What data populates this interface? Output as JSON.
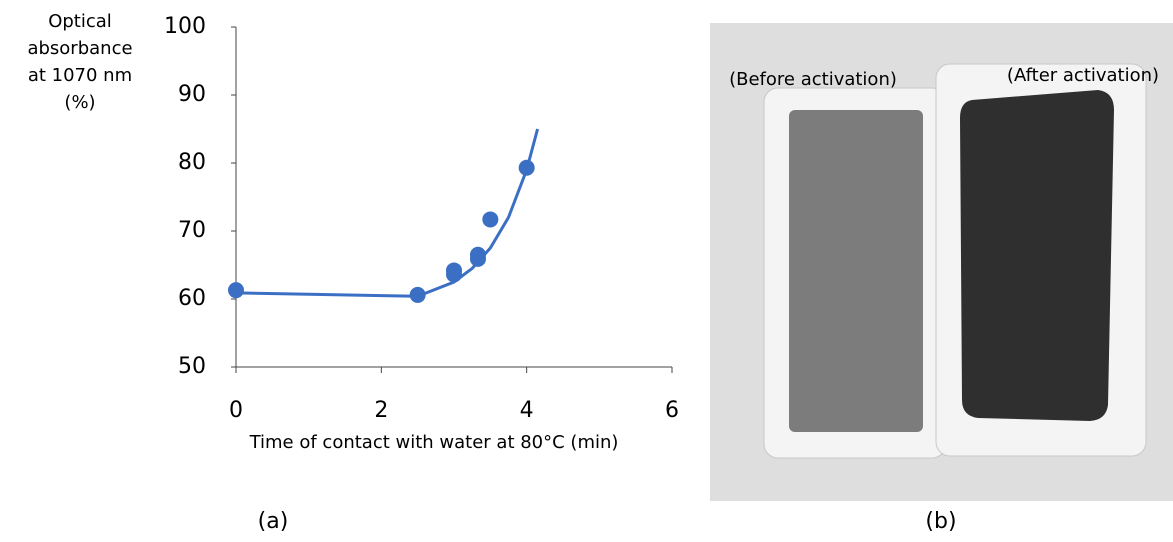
{
  "chart_data": {
    "type": "scatter",
    "ylabel_lines": [
      "Optical",
      "absorbance",
      "at 1070 nm",
      "(%)"
    ],
    "xlabel": "Time of contact with water at 80°C (min)",
    "xlim": [
      0,
      6
    ],
    "xticks": [
      0,
      2,
      4,
      6
    ],
    "ylim": [
      50,
      100
    ],
    "yticks": [
      50,
      60,
      70,
      80,
      90,
      100
    ],
    "series": [
      {
        "color": "#3b6fc4",
        "x": [
          0,
          2.5,
          3,
          3,
          3.33,
          3.33,
          3.5,
          4
        ],
        "values": [
          61.3,
          60.6,
          64.2,
          63.6,
          66.5,
          65.9,
          71.7,
          79.3
        ]
      },
      {
        "color": "#3b6fc4",
        "line": true,
        "x": [
          0,
          1,
          2,
          2.5,
          3,
          3.25,
          3.5,
          3.75,
          4,
          4.15
        ],
        "values": [
          60.9,
          60.7,
          60.5,
          60.4,
          62.5,
          64.5,
          67.5,
          72,
          79,
          85
        ]
      }
    ]
  },
  "panel_labels": [
    "(a)",
    "(b)"
  ],
  "photo": {
    "labels": [
      "(Before activation)",
      "(After activation)"
    ]
  }
}
